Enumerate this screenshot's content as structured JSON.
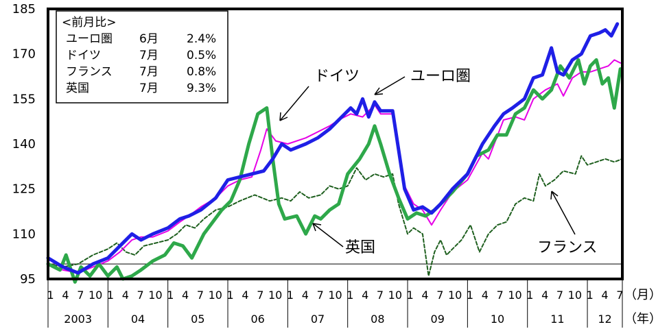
{
  "chart_data": {
    "type": "line",
    "ylim": [
      95,
      185
    ],
    "yticks": [
      95,
      110,
      125,
      140,
      155,
      170,
      185
    ],
    "xlim": [
      2003.0,
      2012.5834
    ],
    "x_units": "decimal year (monthly)",
    "month_tick_labels": [
      "1",
      "4",
      "7",
      "10"
    ],
    "last_year_month_ticks": [
      "1",
      "4",
      "7"
    ],
    "year_labels": [
      "2003",
      "04",
      "05",
      "06",
      "07",
      "08",
      "09",
      "10",
      "11",
      "12"
    ],
    "month_unit_label": "（月）",
    "year_unit_label": "（年）",
    "reference_line": 100,
    "legend_box": {
      "title": "<前月比>",
      "rows": [
        {
          "name": "ユーロ圏",
          "month": "6月",
          "value": "2.4%"
        },
        {
          "name": "ドイツ",
          "month": "7月",
          "value": "0.5%"
        },
        {
          "name": "フランス",
          "month": "7月",
          "value": "0.8%"
        },
        {
          "name": "英国",
          "month": "7月",
          "value": "9.3%"
        }
      ]
    },
    "annotations": [
      {
        "text": "ドイツ"
      },
      {
        "text": "ユーロ圏"
      },
      {
        "text": "英国"
      },
      {
        "text": "フランス"
      }
    ],
    "series": [
      {
        "name": "ユーロ圏",
        "color": "#1f1fe6",
        "style": "thick-solid",
        "points": [
          [
            2003.0,
            102
          ],
          [
            2003.25,
            99
          ],
          [
            2003.5,
            97
          ],
          [
            2003.75,
            100
          ],
          [
            2004.0,
            102
          ],
          [
            2004.2,
            106
          ],
          [
            2004.4,
            110
          ],
          [
            2004.55,
            108
          ],
          [
            2004.75,
            110
          ],
          [
            2005.0,
            112
          ],
          [
            2005.2,
            115
          ],
          [
            2005.35,
            116
          ],
          [
            2005.55,
            118
          ],
          [
            2005.8,
            122
          ],
          [
            2006.0,
            128
          ],
          [
            2006.2,
            129
          ],
          [
            2006.4,
            130
          ],
          [
            2006.6,
            131
          ],
          [
            2006.75,
            135
          ],
          [
            2006.9,
            140
          ],
          [
            2007.05,
            138
          ],
          [
            2007.3,
            140
          ],
          [
            2007.5,
            142
          ],
          [
            2007.7,
            145
          ],
          [
            2007.85,
            148
          ],
          [
            2008.05,
            152
          ],
          [
            2008.15,
            150
          ],
          [
            2008.25,
            155
          ],
          [
            2008.35,
            149
          ],
          [
            2008.45,
            154
          ],
          [
            2008.55,
            151
          ],
          [
            2008.75,
            151
          ],
          [
            2008.95,
            125
          ],
          [
            2009.1,
            118
          ],
          [
            2009.25,
            119
          ],
          [
            2009.4,
            117
          ],
          [
            2009.55,
            120
          ],
          [
            2009.75,
            125
          ],
          [
            2010.0,
            130
          ],
          [
            2010.25,
            140
          ],
          [
            2010.45,
            146
          ],
          [
            2010.6,
            150
          ],
          [
            2010.75,
            152
          ],
          [
            2010.95,
            155
          ],
          [
            2011.1,
            162
          ],
          [
            2011.25,
            163
          ],
          [
            2011.4,
            172
          ],
          [
            2011.5,
            164
          ],
          [
            2011.6,
            163
          ],
          [
            2011.75,
            168
          ],
          [
            2011.9,
            170
          ],
          [
            2012.05,
            176
          ],
          [
            2012.2,
            177
          ],
          [
            2012.3,
            178
          ],
          [
            2012.4,
            176
          ],
          [
            2012.5,
            180
          ]
        ]
      },
      {
        "name": "ドイツ",
        "color": "#e600e6",
        "style": "thin-solid",
        "points": [
          [
            2003.0,
            100
          ],
          [
            2003.25,
            98
          ],
          [
            2003.5,
            97
          ],
          [
            2003.75,
            99
          ],
          [
            2004.0,
            101
          ],
          [
            2004.2,
            104
          ],
          [
            2004.4,
            108
          ],
          [
            2004.55,
            109
          ],
          [
            2004.75,
            109
          ],
          [
            2005.0,
            111
          ],
          [
            2005.2,
            114
          ],
          [
            2005.35,
            116
          ],
          [
            2005.55,
            119
          ],
          [
            2005.8,
            122
          ],
          [
            2006.0,
            126
          ],
          [
            2006.2,
            128
          ],
          [
            2006.4,
            129
          ],
          [
            2006.55,
            138
          ],
          [
            2006.65,
            145
          ],
          [
            2006.8,
            141
          ],
          [
            2007.0,
            140
          ],
          [
            2007.3,
            142
          ],
          [
            2007.5,
            144
          ],
          [
            2007.7,
            146
          ],
          [
            2007.85,
            148
          ],
          [
            2008.05,
            150
          ],
          [
            2008.25,
            149
          ],
          [
            2008.45,
            153
          ],
          [
            2008.55,
            150
          ],
          [
            2008.75,
            150
          ],
          [
            2008.95,
            126
          ],
          [
            2009.1,
            120
          ],
          [
            2009.25,
            118
          ],
          [
            2009.4,
            113
          ],
          [
            2009.55,
            118
          ],
          [
            2009.75,
            124
          ],
          [
            2010.0,
            128
          ],
          [
            2010.25,
            137
          ],
          [
            2010.35,
            135
          ],
          [
            2010.6,
            148
          ],
          [
            2010.8,
            149
          ],
          [
            2010.95,
            148
          ],
          [
            2011.1,
            155
          ],
          [
            2011.3,
            158
          ],
          [
            2011.5,
            160
          ],
          [
            2011.6,
            156
          ],
          [
            2011.75,
            162
          ],
          [
            2011.9,
            164
          ],
          [
            2012.05,
            164
          ],
          [
            2012.2,
            165
          ],
          [
            2012.35,
            166
          ],
          [
            2012.45,
            168
          ],
          [
            2012.55,
            167
          ]
        ]
      },
      {
        "name": "英国",
        "color": "#2ea84a",
        "style": "thick-solid",
        "points": [
          [
            2003.0,
            100
          ],
          [
            2003.2,
            98
          ],
          [
            2003.3,
            103
          ],
          [
            2003.45,
            94
          ],
          [
            2003.55,
            99
          ],
          [
            2003.7,
            96
          ],
          [
            2003.85,
            100
          ],
          [
            2004.0,
            96
          ],
          [
            2004.15,
            99
          ],
          [
            2004.25,
            95
          ],
          [
            2004.4,
            96
          ],
          [
            2004.55,
            98
          ],
          [
            2004.75,
            101
          ],
          [
            2004.95,
            103
          ],
          [
            2005.1,
            107
          ],
          [
            2005.25,
            106
          ],
          [
            2005.4,
            102
          ],
          [
            2005.6,
            110
          ],
          [
            2005.75,
            114
          ],
          [
            2005.9,
            118
          ],
          [
            2006.05,
            121
          ],
          [
            2006.2,
            128
          ],
          [
            2006.35,
            140
          ],
          [
            2006.5,
            150
          ],
          [
            2006.65,
            152
          ],
          [
            2006.75,
            135
          ],
          [
            2006.85,
            120
          ],
          [
            2006.95,
            115
          ],
          [
            2007.15,
            116
          ],
          [
            2007.3,
            110
          ],
          [
            2007.45,
            116
          ],
          [
            2007.55,
            115
          ],
          [
            2007.7,
            118
          ],
          [
            2007.85,
            120
          ],
          [
            2008.0,
            130
          ],
          [
            2008.2,
            135
          ],
          [
            2008.35,
            140
          ],
          [
            2008.45,
            146
          ],
          [
            2008.55,
            140
          ],
          [
            2008.7,
            130
          ],
          [
            2008.85,
            122
          ],
          [
            2009.0,
            115
          ],
          [
            2009.15,
            117
          ],
          [
            2009.3,
            116
          ],
          [
            2009.45,
            118
          ],
          [
            2009.55,
            120
          ],
          [
            2009.75,
            124
          ],
          [
            2010.0,
            130
          ],
          [
            2010.15,
            136
          ],
          [
            2010.35,
            138
          ],
          [
            2010.5,
            143
          ],
          [
            2010.65,
            143
          ],
          [
            2010.8,
            150
          ],
          [
            2010.95,
            152
          ],
          [
            2011.1,
            158
          ],
          [
            2011.25,
            155
          ],
          [
            2011.4,
            158
          ],
          [
            2011.55,
            166
          ],
          [
            2011.7,
            162
          ],
          [
            2011.85,
            168
          ],
          [
            2011.95,
            160
          ],
          [
            2012.05,
            166
          ],
          [
            2012.15,
            168
          ],
          [
            2012.25,
            160
          ],
          [
            2012.35,
            162
          ],
          [
            2012.45,
            152
          ],
          [
            2012.55,
            165
          ]
        ]
      },
      {
        "name": "フランス",
        "color": "#1e5f1e",
        "style": "dashed",
        "points": [
          [
            2003.0,
            100
          ],
          [
            2003.25,
            99
          ],
          [
            2003.5,
            100
          ],
          [
            2003.75,
            103
          ],
          [
            2004.0,
            105
          ],
          [
            2004.15,
            107
          ],
          [
            2004.3,
            104
          ],
          [
            2004.45,
            103
          ],
          [
            2004.6,
            106
          ],
          [
            2004.8,
            107
          ],
          [
            2005.0,
            108
          ],
          [
            2005.15,
            110
          ],
          [
            2005.3,
            113
          ],
          [
            2005.45,
            112
          ],
          [
            2005.6,
            115
          ],
          [
            2005.8,
            118
          ],
          [
            2006.0,
            119
          ],
          [
            2006.2,
            121
          ],
          [
            2006.45,
            123
          ],
          [
            2006.7,
            121
          ],
          [
            2006.9,
            122
          ],
          [
            2007.05,
            121
          ],
          [
            2007.2,
            124
          ],
          [
            2007.35,
            122
          ],
          [
            2007.55,
            123
          ],
          [
            2007.7,
            126
          ],
          [
            2007.85,
            125
          ],
          [
            2008.0,
            126
          ],
          [
            2008.15,
            132
          ],
          [
            2008.3,
            128
          ],
          [
            2008.45,
            130
          ],
          [
            2008.6,
            129
          ],
          [
            2008.75,
            130
          ],
          [
            2008.85,
            120
          ],
          [
            2009.0,
            110
          ],
          [
            2009.1,
            112
          ],
          [
            2009.25,
            110
          ],
          [
            2009.35,
            96
          ],
          [
            2009.45,
            104
          ],
          [
            2009.55,
            108
          ],
          [
            2009.65,
            103
          ],
          [
            2009.75,
            105
          ],
          [
            2009.9,
            108
          ],
          [
            2010.05,
            113
          ],
          [
            2010.2,
            104
          ],
          [
            2010.35,
            110
          ],
          [
            2010.5,
            113
          ],
          [
            2010.65,
            114
          ],
          [
            2010.8,
            120
          ],
          [
            2010.95,
            122
          ],
          [
            2011.1,
            121
          ],
          [
            2011.2,
            130
          ],
          [
            2011.3,
            126
          ],
          [
            2011.45,
            128
          ],
          [
            2011.6,
            131
          ],
          [
            2011.8,
            130
          ],
          [
            2011.9,
            136
          ],
          [
            2012.0,
            133
          ],
          [
            2012.15,
            134
          ],
          [
            2012.3,
            135
          ],
          [
            2012.45,
            134
          ],
          [
            2012.58,
            135
          ]
        ]
      }
    ]
  }
}
